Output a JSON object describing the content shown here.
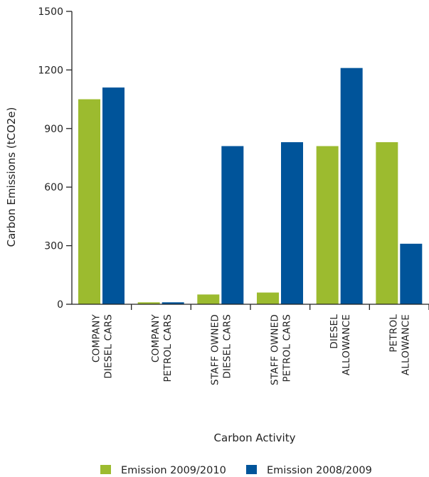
{
  "chart_data": {
    "type": "bar",
    "xlabel": "Carbon Activity",
    "ylabel": "Carbon Emissions (tCO2e)",
    "ylim": [
      0,
      1500
    ],
    "yticks": [
      "0",
      "300",
      "600",
      "900",
      "1200",
      "1500"
    ],
    "categories": [
      [
        "COMPANY",
        "DIESEL CARS"
      ],
      [
        "COMPANY",
        "PETROL CARS"
      ],
      [
        "STAFF OWNED",
        "DIESEL CARS"
      ],
      [
        "STAFF OWNED",
        "PETROL CARS"
      ],
      [
        "DIESEL",
        "ALLOWANCE"
      ],
      [
        "PETROL",
        "ALLOWANCE"
      ]
    ],
    "series": [
      {
        "name": "Emission 2009/2010",
        "color": "#9cbb2f",
        "values": [
          1050,
          10,
          50,
          60,
          810,
          830
        ]
      },
      {
        "name": "Emission 2008/2009",
        "color": "#00549a",
        "values": [
          1110,
          10,
          810,
          830,
          1210,
          310
        ]
      }
    ],
    "legend_position": "bottom",
    "grid": false
  }
}
